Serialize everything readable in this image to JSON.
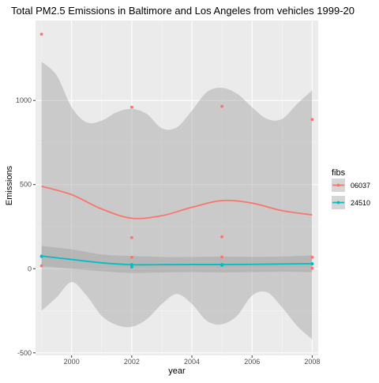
{
  "chart_data": {
    "type": "scatter",
    "title": "Total PM2.5 Emissions in Baltimore and Los Angeles from vehicles 1999-20",
    "xlabel": "year",
    "ylabel": "Emissions",
    "xlim": [
      1998.8,
      2008.2
    ],
    "ylim": [
      -515,
      1475
    ],
    "x_ticks": [
      2000,
      2002,
      2004,
      2006,
      2008
    ],
    "y_ticks": [
      -500,
      0,
      500,
      1000
    ],
    "grid": true,
    "legend": {
      "title": "fibs",
      "position": "right"
    },
    "series": [
      {
        "name": "06037",
        "color": "#F8766D",
        "points": [
          {
            "x": 1999,
            "y": 1394
          },
          {
            "x": 1999,
            "y": 17
          },
          {
            "x": 2002,
            "y": 960
          },
          {
            "x": 2002,
            "y": 185
          },
          {
            "x": 2002,
            "y": 68
          },
          {
            "x": 2005,
            "y": 965
          },
          {
            "x": 2005,
            "y": 190
          },
          {
            "x": 2005,
            "y": 70
          },
          {
            "x": 2008,
            "y": 887
          },
          {
            "x": 2008,
            "y": 68
          },
          {
            "x": 2008,
            "y": 3
          }
        ],
        "smooth": [
          {
            "x": 1999,
            "y": 490
          },
          {
            "x": 2000,
            "y": 440
          },
          {
            "x": 2001,
            "y": 355
          },
          {
            "x": 2002,
            "y": 300
          },
          {
            "x": 2003,
            "y": 315
          },
          {
            "x": 2004,
            "y": 365
          },
          {
            "x": 2005,
            "y": 405
          },
          {
            "x": 2006,
            "y": 390
          },
          {
            "x": 2007,
            "y": 345
          },
          {
            "x": 2008,
            "y": 320
          }
        ],
        "band_upper": [
          {
            "x": 1999,
            "y": 1230
          },
          {
            "x": 1999.5,
            "y": 1150
          },
          {
            "x": 2000,
            "y": 960
          },
          {
            "x": 2000.5,
            "y": 870
          },
          {
            "x": 2001,
            "y": 880
          },
          {
            "x": 2001.5,
            "y": 930
          },
          {
            "x": 2002,
            "y": 950
          },
          {
            "x": 2002.5,
            "y": 920
          },
          {
            "x": 2003,
            "y": 835
          },
          {
            "x": 2003.5,
            "y": 840
          },
          {
            "x": 2004,
            "y": 940
          },
          {
            "x": 2004.5,
            "y": 1050
          },
          {
            "x": 2005,
            "y": 1075
          },
          {
            "x": 2005.5,
            "y": 1040
          },
          {
            "x": 2006,
            "y": 960
          },
          {
            "x": 2006.5,
            "y": 890
          },
          {
            "x": 2007,
            "y": 890
          },
          {
            "x": 2007.5,
            "y": 980
          },
          {
            "x": 2008,
            "y": 1060
          }
        ],
        "band_lower": [
          {
            "x": 1999,
            "y": -250
          },
          {
            "x": 1999.5,
            "y": -170
          },
          {
            "x": 2000,
            "y": -80
          },
          {
            "x": 2000.5,
            "y": -160
          },
          {
            "x": 2001,
            "y": -280
          },
          {
            "x": 2001.5,
            "y": -335
          },
          {
            "x": 2002,
            "y": -345
          },
          {
            "x": 2002.5,
            "y": -300
          },
          {
            "x": 2003,
            "y": -210
          },
          {
            "x": 2003.5,
            "y": -150
          },
          {
            "x": 2004,
            "y": -210
          },
          {
            "x": 2004.5,
            "y": -310
          },
          {
            "x": 2005,
            "y": -330
          },
          {
            "x": 2005.5,
            "y": -280
          },
          {
            "x": 2006,
            "y": -160
          },
          {
            "x": 2006.5,
            "y": -140
          },
          {
            "x": 2007,
            "y": -230
          },
          {
            "x": 2007.5,
            "y": -340
          },
          {
            "x": 2008,
            "y": -420
          }
        ]
      },
      {
        "name": "24510",
        "color": "#00BFC4",
        "points": [
          {
            "x": 1999,
            "y": 75
          },
          {
            "x": 1999,
            "y": 72
          },
          {
            "x": 2002,
            "y": 25
          },
          {
            "x": 2002,
            "y": 22
          },
          {
            "x": 2002,
            "y": 10
          },
          {
            "x": 2005,
            "y": 25
          },
          {
            "x": 2005,
            "y": 20
          },
          {
            "x": 2008,
            "y": 30
          },
          {
            "x": 2008,
            "y": 28
          }
        ],
        "smooth": [
          {
            "x": 1999,
            "y": 75
          },
          {
            "x": 2000,
            "y": 55
          },
          {
            "x": 2001,
            "y": 35
          },
          {
            "x": 2002,
            "y": 24
          },
          {
            "x": 2003,
            "y": 24
          },
          {
            "x": 2004,
            "y": 25
          },
          {
            "x": 2005,
            "y": 25
          },
          {
            "x": 2006,
            "y": 26
          },
          {
            "x": 2007,
            "y": 28
          },
          {
            "x": 2008,
            "y": 30
          }
        ],
        "band_upper": [
          {
            "x": 1999,
            "y": 135
          },
          {
            "x": 2000,
            "y": 115
          },
          {
            "x": 2001,
            "y": 85
          },
          {
            "x": 2002,
            "y": 75
          },
          {
            "x": 2003,
            "y": 70
          },
          {
            "x": 2004,
            "y": 70
          },
          {
            "x": 2005,
            "y": 72
          },
          {
            "x": 2006,
            "y": 70
          },
          {
            "x": 2007,
            "y": 72
          },
          {
            "x": 2008,
            "y": 80
          }
        ],
        "band_lower": [
          {
            "x": 1999,
            "y": 15
          },
          {
            "x": 2000,
            "y": 0
          },
          {
            "x": 2001,
            "y": -15
          },
          {
            "x": 2002,
            "y": -25
          },
          {
            "x": 2003,
            "y": -22
          },
          {
            "x": 2004,
            "y": -20
          },
          {
            "x": 2005,
            "y": -22
          },
          {
            "x": 2006,
            "y": -20
          },
          {
            "x": 2007,
            "y": -18
          },
          {
            "x": 2008,
            "y": -20
          }
        ]
      }
    ]
  }
}
